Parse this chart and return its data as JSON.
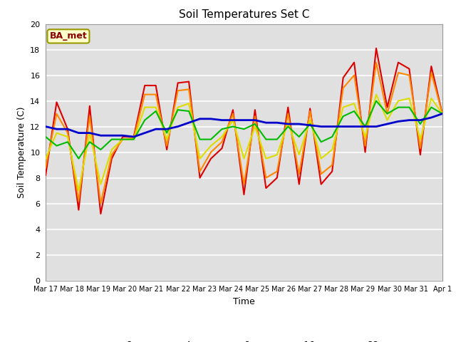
{
  "title": "Soil Temperatures Set C",
  "xlabel": "Time",
  "ylabel": "Soil Temperature (C)",
  "ylim": [
    0,
    20
  ],
  "annotation": "BA_met",
  "bg_color": "#e0e0e0",
  "fig_color": "#ffffff",
  "legend_bg": "#ffffff",
  "series_colors": {
    "-2cm": "#dd0000",
    "-4cm": "#ff8800",
    "-8cm": "#dddd00",
    "-16cm": "#00bb00",
    "-32cm": "#0000cc"
  },
  "xtick_labels": [
    "Mar 17",
    "Mar 18",
    "Mar 19",
    "Mar 20",
    "Mar 21",
    "Mar 22",
    "Mar 23",
    "Mar 24",
    "Mar 25",
    "Mar 26",
    "Mar 27",
    "Mar 28",
    "Mar 29",
    "Mar 30",
    "Mar 31",
    "Apr 1"
  ],
  "series": {
    "-2cm": [
      8.2,
      13.9,
      11.8,
      5.5,
      13.6,
      5.2,
      9.5,
      11.2,
      11.2,
      15.2,
      15.2,
      10.2,
      15.4,
      15.5,
      8.0,
      9.5,
      10.3,
      13.3,
      6.7,
      13.3,
      7.2,
      8.0,
      13.5,
      7.5,
      13.4,
      7.5,
      8.5,
      15.8,
      17.0,
      10.0,
      18.1,
      13.5,
      17.0,
      16.5,
      9.8,
      16.7,
      13.0
    ],
    "-4cm": [
      8.8,
      13.0,
      11.5,
      6.2,
      12.8,
      6.0,
      9.8,
      11.0,
      11.1,
      14.5,
      14.5,
      10.5,
      14.8,
      14.9,
      8.5,
      10.0,
      10.8,
      13.0,
      7.5,
      12.8,
      8.0,
      8.5,
      13.0,
      8.3,
      13.2,
      8.3,
      9.0,
      15.0,
      16.0,
      10.5,
      17.0,
      13.0,
      16.2,
      16.0,
      10.3,
      16.2,
      13.0
    ],
    "-8cm": [
      9.5,
      11.5,
      11.2,
      7.0,
      11.5,
      7.5,
      10.2,
      11.0,
      11.0,
      13.5,
      13.5,
      11.0,
      13.5,
      13.8,
      9.5,
      10.5,
      11.2,
      12.5,
      9.5,
      12.0,
      9.5,
      9.8,
      12.3,
      9.8,
      12.5,
      9.5,
      10.2,
      13.5,
      13.8,
      11.2,
      14.5,
      12.5,
      14.0,
      14.2,
      11.0,
      14.2,
      13.0
    ],
    "-16cm": [
      11.2,
      10.5,
      10.8,
      9.5,
      10.8,
      10.2,
      11.0,
      11.0,
      11.0,
      12.5,
      13.2,
      11.5,
      13.3,
      13.2,
      11.0,
      11.0,
      11.8,
      12.0,
      11.8,
      12.2,
      11.0,
      11.0,
      12.0,
      11.2,
      12.2,
      10.8,
      11.2,
      12.8,
      13.2,
      12.0,
      14.0,
      13.0,
      13.5,
      13.5,
      12.2,
      13.5,
      13.0
    ],
    "-32cm": [
      12.0,
      11.8,
      11.8,
      11.5,
      11.5,
      11.3,
      11.3,
      11.3,
      11.2,
      11.5,
      11.8,
      11.8,
      12.0,
      12.3,
      12.6,
      12.6,
      12.5,
      12.5,
      12.5,
      12.5,
      12.3,
      12.3,
      12.2,
      12.2,
      12.1,
      12.0,
      12.0,
      12.0,
      12.0,
      12.0,
      12.0,
      12.2,
      12.4,
      12.5,
      12.5,
      12.7,
      13.0
    ]
  }
}
